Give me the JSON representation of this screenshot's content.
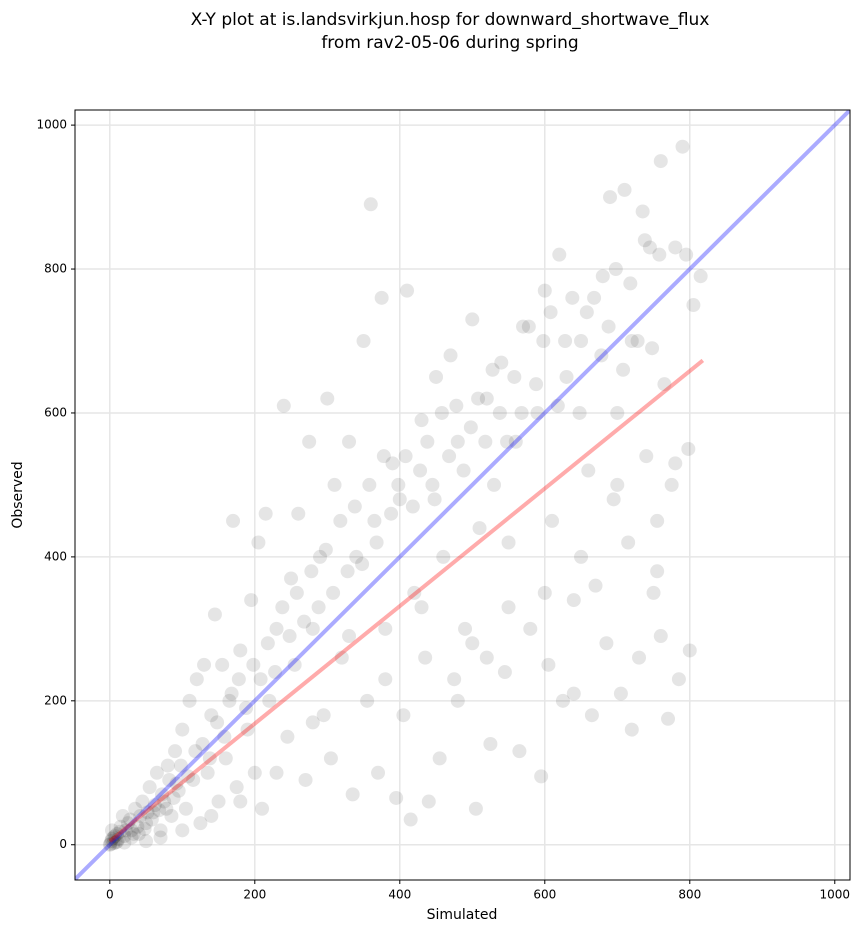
{
  "chart_data": {
    "type": "scatter",
    "title": [
      "X-Y plot at is.landsvirkjun.hosp for downward_shortwave_flux",
      "from rav2-05-06 during spring"
    ],
    "x_label": "Simulated",
    "y_label": "Observed",
    "xlim": [
      -48,
      1021
    ],
    "ylim": [
      -49,
      1021
    ],
    "xticks": [
      0,
      200,
      400,
      600,
      800,
      1000
    ],
    "yticks": [
      0,
      200,
      400,
      600,
      800,
      1000
    ],
    "grid": true,
    "color": "#000000",
    "x": [
      0,
      2,
      5,
      8,
      10,
      3,
      12,
      15,
      20,
      25,
      18,
      30,
      35,
      40,
      45,
      50,
      55,
      60,
      65,
      70,
      75,
      80,
      85,
      90,
      95,
      100,
      105,
      110,
      115,
      120,
      125,
      130,
      135,
      140,
      145,
      150,
      155,
      160,
      165,
      170,
      175,
      180,
      190,
      195,
      200,
      205,
      210,
      215,
      220,
      230,
      240,
      245,
      250,
      255,
      260,
      270,
      275,
      280,
      290,
      295,
      300,
      305,
      310,
      320,
      330,
      335,
      340,
      350,
      355,
      360,
      365,
      370,
      375,
      380,
      390,
      395,
      400,
      405,
      410,
      415,
      420,
      430,
      435,
      440,
      445,
      450,
      455,
      460,
      470,
      475,
      480,
      490,
      500,
      505,
      510,
      520,
      525,
      530,
      540,
      545,
      550,
      560,
      565,
      570,
      580,
      590,
      595,
      600,
      605,
      610,
      620,
      625,
      630,
      640,
      650,
      660,
      665,
      670,
      680,
      685,
      690,
      695,
      700,
      705,
      710,
      715,
      720,
      730,
      735,
      740,
      745,
      750,
      755,
      760,
      765,
      770,
      775,
      780,
      785,
      790,
      795,
      800,
      805,
      815,
      760,
      720,
      640,
      520,
      480,
      430,
      380,
      330,
      280,
      230,
      180,
      140,
      100,
      70,
      50,
      30,
      20,
      5,
      1,
      3,
      7,
      10,
      14,
      22,
      28,
      33,
      38,
      42,
      48,
      52,
      58,
      62,
      68,
      72,
      78,
      82,
      88,
      92,
      98,
      108,
      118,
      128,
      138,
      148,
      158,
      168,
      178,
      188,
      198,
      208,
      218,
      228,
      238,
      248,
      258,
      268,
      278,
      288,
      298,
      308,
      318,
      328,
      338,
      348,
      358,
      368,
      378,
      388,
      398,
      408,
      418,
      428,
      438,
      448,
      458,
      468,
      478,
      488,
      498,
      508,
      518,
      528,
      538,
      548,
      558,
      568,
      578,
      588,
      598,
      608,
      618,
      628,
      638,
      648,
      658,
      668,
      678,
      688,
      698,
      708,
      718,
      728,
      738,
      748,
      758,
      798,
      780,
      755,
      700,
      650,
      600,
      550,
      500
    ],
    "values": [
      0,
      5,
      10,
      3,
      15,
      20,
      8,
      25,
      12,
      30,
      40,
      20,
      50,
      15,
      60,
      30,
      80,
      45,
      100,
      20,
      60,
      110,
      40,
      130,
      75,
      160,
      50,
      200,
      90,
      230,
      30,
      250,
      100,
      180,
      320,
      60,
      250,
      120,
      200,
      450,
      80,
      270,
      160,
      340,
      100,
      420,
      50,
      460,
      200,
      300,
      610,
      150,
      370,
      250,
      460,
      90,
      560,
      300,
      400,
      180,
      620,
      120,
      500,
      260,
      560,
      70,
      400,
      700,
      200,
      890,
      450,
      100,
      760,
      300,
      530,
      65,
      480,
      180,
      770,
      35,
      350,
      590,
      260,
      60,
      500,
      650,
      120,
      400,
      680,
      230,
      560,
      300,
      730,
      50,
      440,
      620,
      140,
      500,
      670,
      240,
      420,
      560,
      130,
      720,
      300,
      600,
      95,
      770,
      250,
      450,
      820,
      200,
      650,
      340,
      700,
      520,
      180,
      360,
      790,
      280,
      900,
      480,
      600,
      210,
      910,
      420,
      700,
      260,
      880,
      540,
      830,
      350,
      450,
      950,
      640,
      175,
      500,
      830,
      230,
      970,
      820,
      270,
      750,
      790,
      290,
      160,
      210,
      260,
      200,
      330,
      230,
      290,
      170,
      100,
      60,
      40,
      20,
      10,
      5,
      10,
      3,
      2,
      1,
      8,
      12,
      4,
      18,
      20,
      35,
      15,
      25,
      40,
      22,
      45,
      35,
      55,
      48,
      70,
      50,
      90,
      65,
      85,
      110,
      95,
      130,
      140,
      120,
      170,
      150,
      210,
      230,
      190,
      250,
      230,
      280,
      240,
      330,
      290,
      350,
      310,
      380,
      330,
      410,
      350,
      450,
      380,
      470,
      390,
      500,
      420,
      540,
      460,
      500,
      540,
      470,
      520,
      560,
      480,
      600,
      540,
      610,
      520,
      580,
      620,
      560,
      660,
      600,
      560,
      650,
      600,
      720,
      640,
      700,
      740,
      610,
      700,
      760,
      600,
      740,
      760,
      680,
      720,
      800,
      660,
      780,
      700,
      840,
      690,
      820,
      550,
      530,
      380,
      500,
      400,
      350,
      330,
      280
    ],
    "lines": [
      {
        "color": "#0000ff",
        "x": [
          -48,
          1021
        ],
        "values": [
          -48,
          1021
        ]
      },
      {
        "color": "#ff0000",
        "x": [
          0,
          818
        ],
        "values": [
          5,
          673
        ]
      }
    ]
  }
}
